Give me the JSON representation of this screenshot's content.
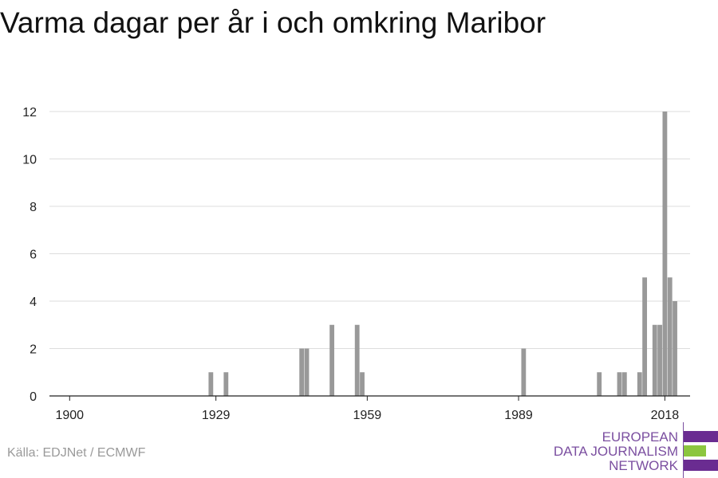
{
  "title": "Varma dagar per år i och omkring Maribor",
  "source": "Källa: EDJNet / ECMWF",
  "logo": {
    "line1": "EUROPEAN",
    "line2": "DATA JOURNALISM",
    "line3": "NETWORK",
    "colors": {
      "purple": "#6a2c91",
      "green": "#8cc63f",
      "text": "#7b4fa0"
    }
  },
  "chart_data": {
    "type": "bar",
    "bar_color": "#999999",
    "x_ticks": [
      1900,
      1929,
      1959,
      1989,
      2018
    ],
    "y_ticks": [
      0,
      2,
      4,
      6,
      8,
      10,
      12
    ],
    "xlim": [
      1896,
      2023
    ],
    "ylim": [
      0,
      12
    ],
    "grid": true,
    "x": [
      1928,
      1931,
      1946,
      1947,
      1952,
      1957,
      1958,
      1990,
      2005,
      2009,
      2010,
      2013,
      2014,
      2016,
      2017,
      2018,
      2019,
      2020
    ],
    "values": [
      1,
      1,
      2,
      2,
      3,
      3,
      1,
      2,
      1,
      1,
      1,
      1,
      5,
      3,
      3,
      12,
      5,
      4
    ]
  }
}
